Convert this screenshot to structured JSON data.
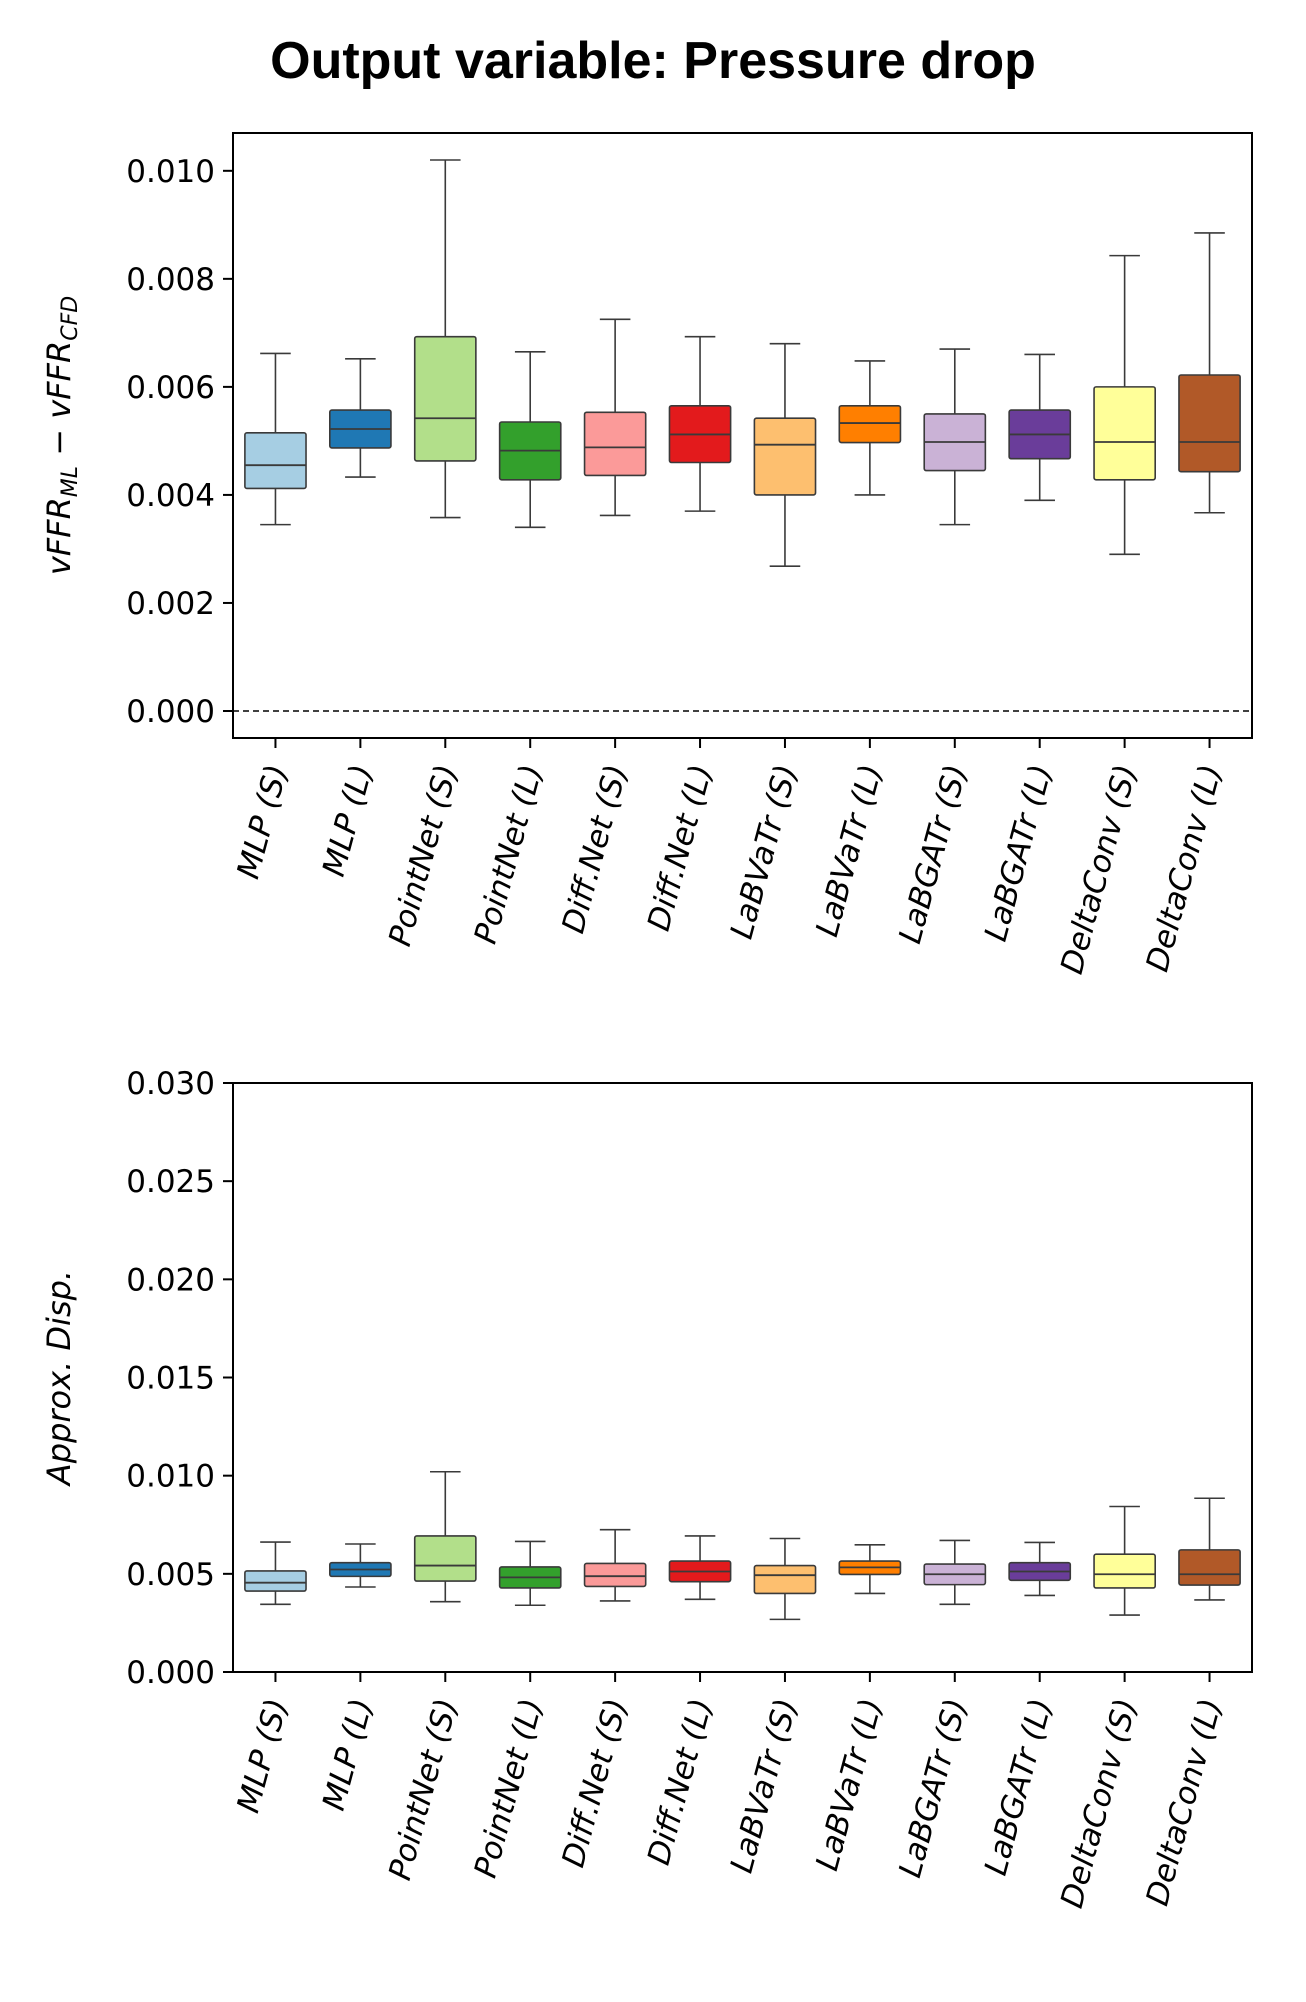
{
  "title": "Output variable: Pressure drop",
  "colors": [
    "#a6cee3",
    "#1f78b4",
    "#b2df8a",
    "#33a02c",
    "#fb9a99",
    "#e31a1c",
    "#fdbf6f",
    "#ff7f00",
    "#cab2d6",
    "#6a3d9a",
    "#ffff99",
    "#b15928"
  ],
  "categories": [
    "MLP (S)",
    "MLP (L)",
    "PointNet (S)",
    "PointNet (L)",
    "Diff.Net (S)",
    "Diff.Net (L)",
    "LaBVaTr (S)",
    "LaBVaTr (L)",
    "LaBGATr (S)",
    "LaBGATr (L)",
    "DeltaConv (S)",
    "DeltaConv (L)"
  ],
  "chart_data": [
    {
      "type": "box",
      "ylabel": {
        "main1": "vFFR",
        "sub1": "ML",
        "op": " − vFFR",
        "sub2": "CFD"
      },
      "ylim": [
        -0.0005,
        0.0107
      ],
      "yticks": [
        0.0,
        0.002,
        0.004,
        0.006,
        0.008,
        0.01
      ],
      "ytick_labels": [
        "0.000",
        "0.002",
        "0.004",
        "0.006",
        "0.008",
        "0.010"
      ],
      "reference_line": 0.0,
      "boxes": [
        {
          "whisker_low": 0.00345,
          "q1": 0.00412,
          "median": 0.00455,
          "q3": 0.00515,
          "whisker_high": 0.00662
        },
        {
          "whisker_low": 0.00433,
          "q1": 0.00487,
          "median": 0.00522,
          "q3": 0.00557,
          "whisker_high": 0.00652
        },
        {
          "whisker_low": 0.00358,
          "q1": 0.00463,
          "median": 0.00542,
          "q3": 0.00693,
          "whisker_high": 0.0102
        },
        {
          "whisker_low": 0.0034,
          "q1": 0.00428,
          "median": 0.00482,
          "q3": 0.00535,
          "whisker_high": 0.00665
        },
        {
          "whisker_low": 0.00362,
          "q1": 0.00436,
          "median": 0.00488,
          "q3": 0.00553,
          "whisker_high": 0.00725
        },
        {
          "whisker_low": 0.0037,
          "q1": 0.0046,
          "median": 0.00512,
          "q3": 0.00565,
          "whisker_high": 0.00693
        },
        {
          "whisker_low": 0.00268,
          "q1": 0.004,
          "median": 0.00493,
          "q3": 0.00542,
          "whisker_high": 0.0068
        },
        {
          "whisker_low": 0.004,
          "q1": 0.00497,
          "median": 0.00533,
          "q3": 0.00565,
          "whisker_high": 0.00648
        },
        {
          "whisker_low": 0.00345,
          "q1": 0.00445,
          "median": 0.00498,
          "q3": 0.0055,
          "whisker_high": 0.0067
        },
        {
          "whisker_low": 0.0039,
          "q1": 0.00467,
          "median": 0.00512,
          "q3": 0.00557,
          "whisker_high": 0.0066
        },
        {
          "whisker_low": 0.0029,
          "q1": 0.00428,
          "median": 0.00498,
          "q3": 0.006,
          "whisker_high": 0.00843
        },
        {
          "whisker_low": 0.00367,
          "q1": 0.00443,
          "median": 0.00498,
          "q3": 0.00622,
          "whisker_high": 0.00885
        }
      ]
    },
    {
      "type": "box",
      "ylabel": {
        "main1": "Approx. Disp."
      },
      "ylim": [
        0.0,
        0.03
      ],
      "yticks": [
        0.0,
        0.005,
        0.01,
        0.015,
        0.02,
        0.025,
        0.03
      ],
      "ytick_labels": [
        "0.000",
        "0.005",
        "0.010",
        "0.015",
        "0.020",
        "0.025",
        "0.030"
      ],
      "boxes": [
        {
          "whisker_low": 0.00345,
          "q1": 0.00412,
          "median": 0.00455,
          "q3": 0.00515,
          "whisker_high": 0.00662
        },
        {
          "whisker_low": 0.00433,
          "q1": 0.00487,
          "median": 0.00522,
          "q3": 0.00557,
          "whisker_high": 0.00652
        },
        {
          "whisker_low": 0.00358,
          "q1": 0.00463,
          "median": 0.00542,
          "q3": 0.00693,
          "whisker_high": 0.0102
        },
        {
          "whisker_low": 0.0034,
          "q1": 0.00428,
          "median": 0.00482,
          "q3": 0.00535,
          "whisker_high": 0.00665
        },
        {
          "whisker_low": 0.00362,
          "q1": 0.00436,
          "median": 0.00488,
          "q3": 0.00553,
          "whisker_high": 0.00725
        },
        {
          "whisker_low": 0.0037,
          "q1": 0.0046,
          "median": 0.00512,
          "q3": 0.00565,
          "whisker_high": 0.00693
        },
        {
          "whisker_low": 0.00268,
          "q1": 0.004,
          "median": 0.00493,
          "q3": 0.00542,
          "whisker_high": 0.0068
        },
        {
          "whisker_low": 0.004,
          "q1": 0.00497,
          "median": 0.00533,
          "q3": 0.00565,
          "whisker_high": 0.00648
        },
        {
          "whisker_low": 0.00345,
          "q1": 0.00445,
          "median": 0.00498,
          "q3": 0.0055,
          "whisker_high": 0.0067
        },
        {
          "whisker_low": 0.0039,
          "q1": 0.00467,
          "median": 0.00512,
          "q3": 0.00557,
          "whisker_high": 0.0066
        },
        {
          "whisker_low": 0.0029,
          "q1": 0.00428,
          "median": 0.00498,
          "q3": 0.006,
          "whisker_high": 0.00843
        },
        {
          "whisker_low": 0.00367,
          "q1": 0.00443,
          "median": 0.00498,
          "q3": 0.00622,
          "whisker_high": 0.00885
        }
      ]
    }
  ]
}
